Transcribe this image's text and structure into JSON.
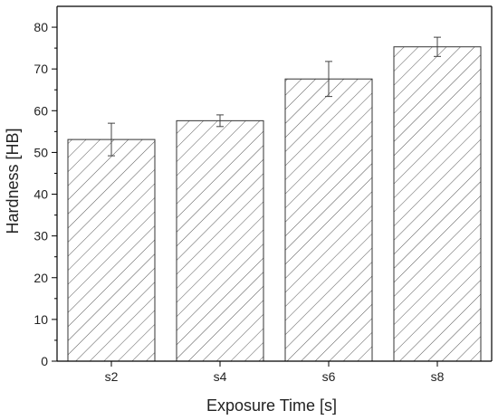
{
  "chart_data": {
    "type": "bar",
    "categories": [
      "s2",
      "s4",
      "s6",
      "s8"
    ],
    "values": [
      53.1,
      57.6,
      67.6,
      75.3
    ],
    "error": [
      3.9,
      1.4,
      4.2,
      2.3
    ],
    "xlabel": "Exposure Time [s]",
    "ylabel": "Hardness [HB]",
    "ylim": [
      0,
      85
    ],
    "yticks": [
      0,
      10,
      20,
      30,
      40,
      50,
      60,
      70,
      80
    ],
    "grid": false,
    "bar_fill": "hatched diagonal",
    "colors": {
      "bar_stroke": "#333333",
      "hatch": "#555555",
      "axis": "#000000"
    }
  }
}
